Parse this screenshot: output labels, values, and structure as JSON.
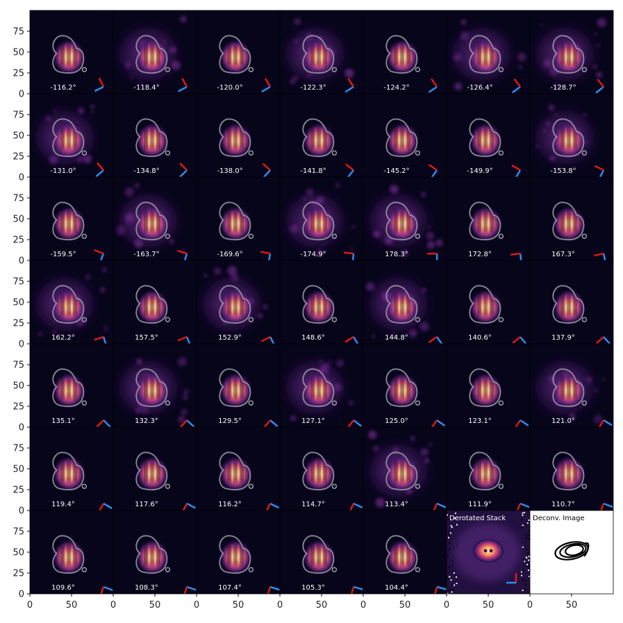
{
  "figure": {
    "colors": {
      "background": "#07051a",
      "glow_outer": "#5a1f8a",
      "glow_mid": "#d0487a",
      "glow_inner": "#ffd7a0",
      "contour": "#9a9aa8",
      "arrow_red": "#e01818",
      "arrow_blue": "#2a8ff0"
    }
  },
  "chart_data": {
    "type": "image-grid",
    "rows": 7,
    "cols": 7,
    "x_ticks": [
      0,
      50
    ],
    "y_ticks": [
      0,
      25,
      50,
      75
    ],
    "xlim": [
      0,
      100
    ],
    "ylim": [
      0,
      100
    ],
    "panels": [
      {
        "label": "-116.2°"
      },
      {
        "label": "-118.4°"
      },
      {
        "label": "-120.0°"
      },
      {
        "label": "-122.3°"
      },
      {
        "label": "-124.2°"
      },
      {
        "label": "-126.4°"
      },
      {
        "label": "-128.7°"
      },
      {
        "label": "-131.0°"
      },
      {
        "label": "-134.8°"
      },
      {
        "label": "-138.0°"
      },
      {
        "label": "-141.8°"
      },
      {
        "label": "-145.2°"
      },
      {
        "label": "-149.9°"
      },
      {
        "label": "-153.8°"
      },
      {
        "label": "-159.5°"
      },
      {
        "label": "-163.7°"
      },
      {
        "label": "-169.6°"
      },
      {
        "label": "-174.9°"
      },
      {
        "label": "178.3°"
      },
      {
        "label": "172.8°"
      },
      {
        "label": "167.3°"
      },
      {
        "label": "162.2°"
      },
      {
        "label": "157.5°"
      },
      {
        "label": "152.9°"
      },
      {
        "label": "148.6°"
      },
      {
        "label": "144.8°"
      },
      {
        "label": "140.6°"
      },
      {
        "label": "137.9°"
      },
      {
        "label": "135.1°"
      },
      {
        "label": "132.3°"
      },
      {
        "label": "129.5°"
      },
      {
        "label": "127.1°"
      },
      {
        "label": "125.0°"
      },
      {
        "label": "123.1°"
      },
      {
        "label": "121.0°"
      },
      {
        "label": "119.4°"
      },
      {
        "label": "117.6°"
      },
      {
        "label": "116.2°"
      },
      {
        "label": "114.7°"
      },
      {
        "label": "113.4°"
      },
      {
        "label": "111.9°"
      },
      {
        "label": "110.7°"
      },
      {
        "label": "109.6°"
      },
      {
        "label": "108.3°"
      },
      {
        "label": "107.4°"
      },
      {
        "label": "105.3°"
      },
      {
        "label": "104.4°"
      }
    ],
    "special_panels": {
      "stack_title": "Derotated Stack",
      "deconv_title": "Deconv. Image"
    }
  }
}
